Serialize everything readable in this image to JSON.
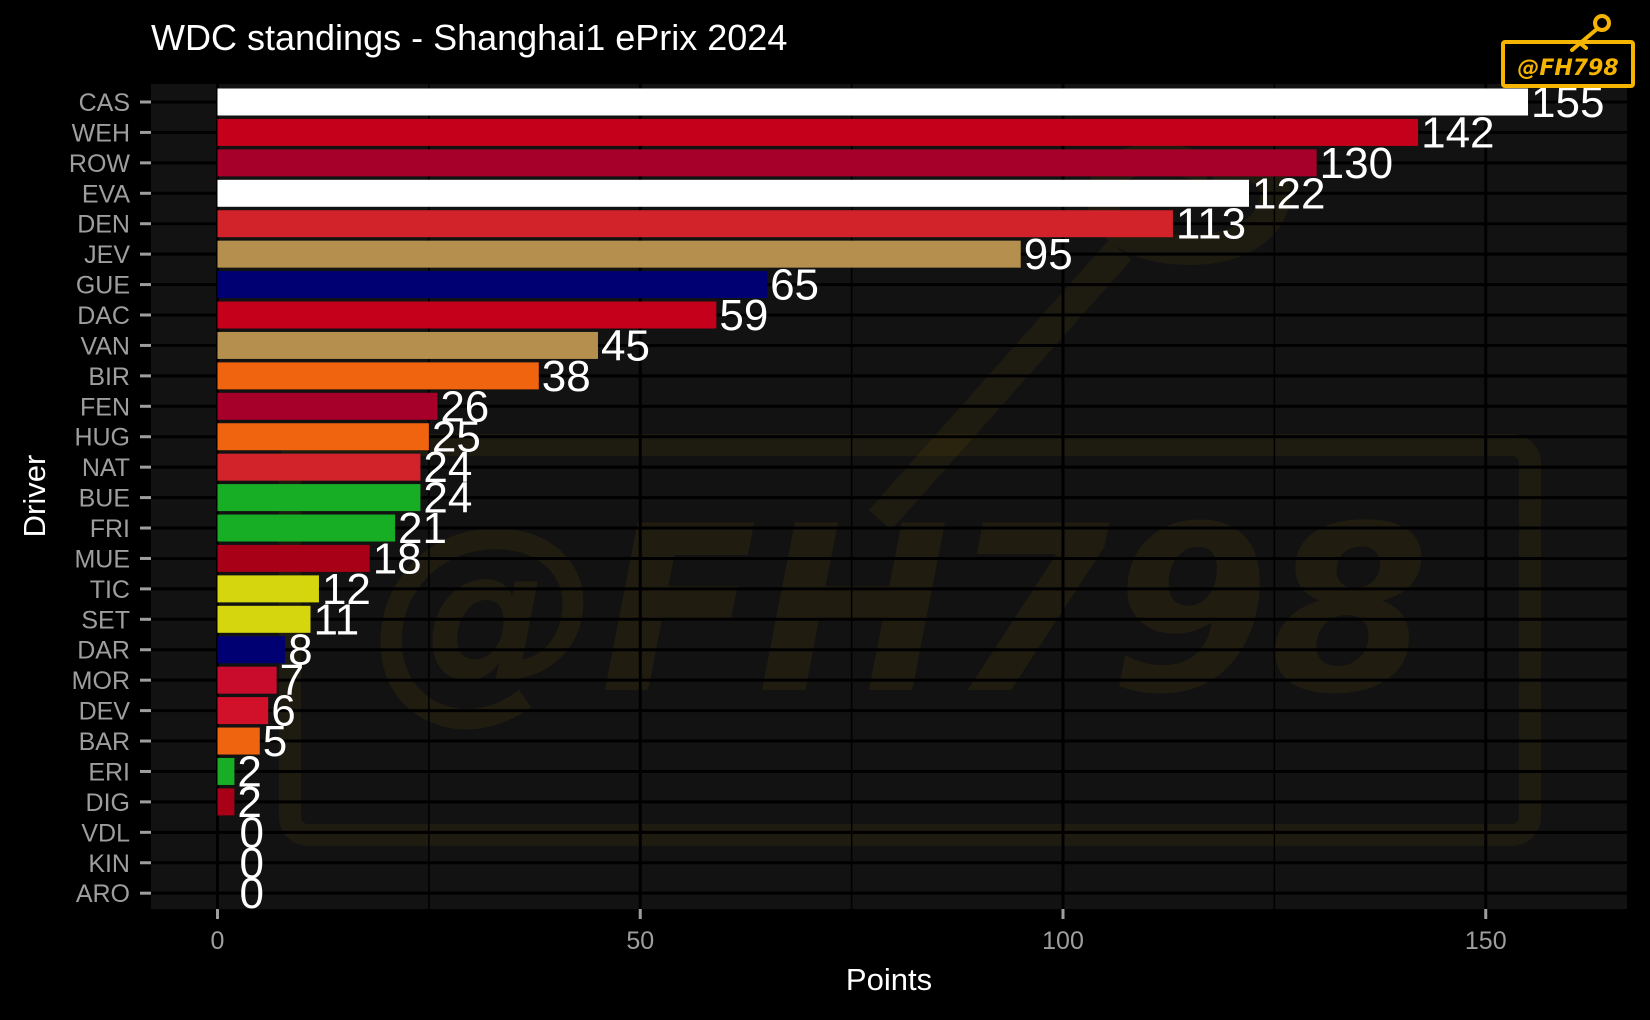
{
  "chart_data": {
    "type": "bar",
    "orientation": "horizontal",
    "title": "WDC standings - Shanghai1 ePrix 2024",
    "xlabel": "Points",
    "ylabel": "Driver",
    "xlim": [
      -3.8,
      167
    ],
    "x_ticks": [
      0,
      50,
      100,
      150
    ],
    "grid": true,
    "background": "#000000",
    "panel_color": "#121212",
    "gridline_color": "#000000",
    "text_color": "#FFFFFF",
    "tick_label_color": "#9E9E9E",
    "categories": [
      "CAS",
      "WEH",
      "ROW",
      "EVA",
      "DEN",
      "JEV",
      "GUE",
      "DAC",
      "VAN",
      "BIR",
      "FEN",
      "HUG",
      "NAT",
      "BUE",
      "FRI",
      "MUE",
      "TIC",
      "SET",
      "DAR",
      "MOR",
      "DEV",
      "BAR",
      "ERI",
      "DIG",
      "VDL",
      "KIN",
      "ARO"
    ],
    "values": [
      155,
      142,
      130,
      122,
      113,
      95,
      65,
      59,
      45,
      38,
      26,
      25,
      24,
      24,
      21,
      18,
      12,
      11,
      8,
      7,
      6,
      5,
      2,
      2,
      0,
      0,
      0
    ],
    "colors": [
      "#FFFFFF",
      "#C4001A",
      "#A6002A",
      "#FFFFFF",
      "#D2232A",
      "#B48F4E",
      "#000073",
      "#C4001A",
      "#B48F4E",
      "#F0640F",
      "#A6002A",
      "#F0640F",
      "#D2232A",
      "#17AE26",
      "#17AE26",
      "#A80016",
      "#D6D60E",
      "#D6D60E",
      "#000073",
      "#C90C2C",
      "#D1102A",
      "#EE640F",
      "#17AE26",
      "#A80016",
      "#FFFFFF",
      "#FFFFFF",
      "#FFFFFF"
    ]
  },
  "watermark": {
    "text": "@FH798",
    "color": "#F5B400"
  }
}
